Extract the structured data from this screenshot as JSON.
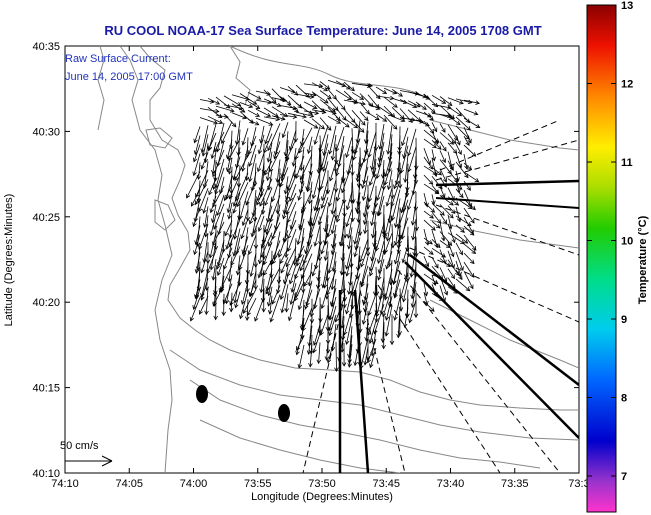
{
  "title": "RU COOL  NOAA-17  Sea Surface Temperature:  June 14, 2005 1708 GMT",
  "annotation": {
    "line1": "Raw Surface Current:",
    "line2": "June 14, 2005 17:00 GMT"
  },
  "scale_label": "50 cm/s",
  "x_axis": {
    "label": "Longitude (Degrees:Minutes)",
    "ticks": [
      "74:10",
      "74:05",
      "74:00",
      "73:55",
      "73:50",
      "73:45",
      "73:40",
      "73:35",
      "73:3"
    ]
  },
  "y_axis": {
    "label": "Latitude (Degrees:Minutes)",
    "ticks": [
      "40:35",
      "40:30",
      "40:25",
      "40:20",
      "40:15",
      "40:10"
    ]
  },
  "colorbar": {
    "label": "Temperature (°C)",
    "ticks": [
      "13",
      "12",
      "11",
      "10",
      "9",
      "8",
      "7"
    ]
  },
  "colors": {
    "title": "#1a1aa6",
    "annotation": "#2233bb",
    "land_outline": "#888888",
    "vectors": "#000000"
  }
}
